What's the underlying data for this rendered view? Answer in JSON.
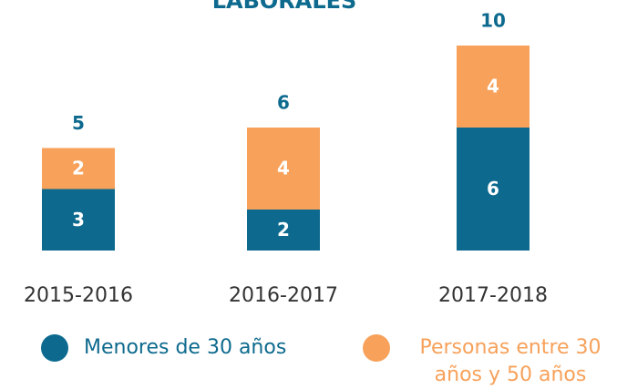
{
  "chart_data": {
    "type": "stacked_bar",
    "title": "LABORALES",
    "categories": [
      "2015-2016",
      "2016-2017",
      "2017-2018"
    ],
    "series": [
      {
        "name": "Menores de 30 años",
        "color": "#0d6a8e",
        "values": [
          3,
          2,
          6
        ]
      },
      {
        "name": "Personas entre 30 años y 50 años",
        "color": "#f7a15a",
        "values": [
          2,
          4,
          4
        ]
      }
    ],
    "totals": [
      5,
      6,
      10
    ],
    "ylim": [
      0,
      10
    ]
  }
}
